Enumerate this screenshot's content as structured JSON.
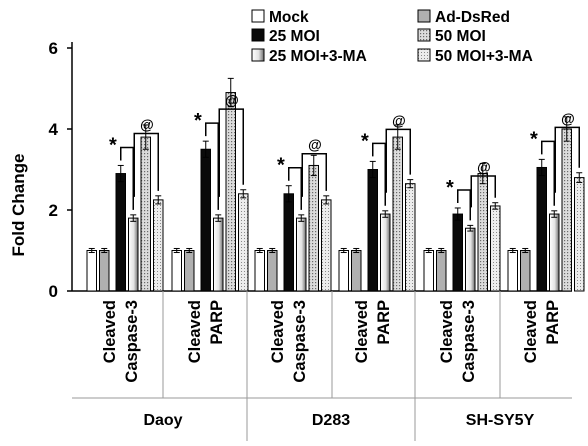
{
  "chart_data": {
    "type": "bar",
    "title": "",
    "xlabel": "",
    "ylabel": "Fold Change",
    "ylim": [
      0,
      6
    ],
    "yticks": [
      "0",
      "2",
      "4",
      "6"
    ],
    "grid": false,
    "legend_position": "top",
    "series": [
      {
        "name": "Mock",
        "color": "#ffffff",
        "pattern": "solid-white"
      },
      {
        "name": "Ad-DsRed",
        "color": "#b0b0b0",
        "pattern": "solid-gray"
      },
      {
        "name": "25 MOI",
        "color": "#0a0a0a",
        "pattern": "solid-black"
      },
      {
        "name": "50 MOI",
        "color": "#c8c8c8",
        "pattern": "dotted-light"
      },
      {
        "name": "25 MOI+3-MA",
        "color": "#9a9a9a",
        "pattern": "gradient-white-gray"
      },
      {
        "name": "50 MOI+3-MA",
        "color": "#d6d6d6",
        "pattern": "dotted-fine"
      }
    ],
    "groups": [
      {
        "name": "Daoy",
        "subgroups": [
          {
            "label": [
              "Cleaved",
              "Caspase-3"
            ],
            "values": [
              1.0,
              1.0,
              2.9,
              3.8,
              1.8,
              2.25
            ],
            "errors": [
              0.05,
              0.05,
              0.2,
              0.3,
              0.08,
              0.1
            ],
            "sig": [
              "*",
              "@"
            ]
          },
          {
            "label": [
              "Cleaved",
              "PARP"
            ],
            "values": [
              1.0,
              1.0,
              3.5,
              4.9,
              1.8,
              2.4
            ],
            "errors": [
              0.05,
              0.05,
              0.2,
              0.35,
              0.08,
              0.1
            ],
            "sig": [
              "*",
              "@"
            ]
          }
        ]
      },
      {
        "name": "D283",
        "subgroups": [
          {
            "label": [
              "Cleaved",
              "Caspase-3"
            ],
            "values": [
              1.0,
              1.0,
              2.4,
              3.1,
              1.8,
              2.25
            ],
            "errors": [
              0.05,
              0.05,
              0.2,
              0.25,
              0.08,
              0.1
            ],
            "sig": [
              "*",
              "@"
            ]
          },
          {
            "label": [
              "Cleaved",
              "PARP"
            ],
            "values": [
              1.0,
              1.0,
              3.0,
              3.8,
              1.9,
              2.65
            ],
            "errors": [
              0.05,
              0.05,
              0.2,
              0.3,
              0.08,
              0.1
            ],
            "sig": [
              "*",
              "@"
            ]
          }
        ]
      },
      {
        "name": "SH-SY5Y",
        "subgroups": [
          {
            "label": [
              "Cleaved",
              "Caspase-3"
            ],
            "values": [
              1.0,
              1.0,
              1.9,
              2.9,
              1.55,
              2.1
            ],
            "errors": [
              0.05,
              0.05,
              0.15,
              0.25,
              0.07,
              0.08
            ],
            "sig": [
              "*",
              "@"
            ]
          },
          {
            "label": [
              "Cleaved",
              "PARP"
            ],
            "values": [
              1.0,
              1.0,
              3.05,
              4.0,
              1.9,
              2.8
            ],
            "errors": [
              0.05,
              0.05,
              0.2,
              0.3,
              0.08,
              0.12
            ],
            "sig": [
              "*",
              "@"
            ]
          }
        ]
      }
    ]
  }
}
